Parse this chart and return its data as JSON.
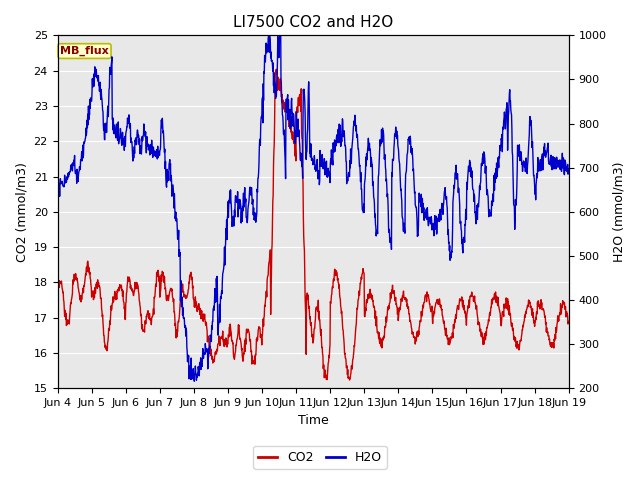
{
  "title": "LI7500 CO2 and H2O",
  "xlabel": "Time",
  "ylabel_left": "CO2 (mmol/m3)",
  "ylabel_right": "H2O (mmol/m3)",
  "ylim_left": [
    15.0,
    25.0
  ],
  "ylim_right": [
    200,
    1000
  ],
  "xtick_labels": [
    "Jun 4",
    "Jun 5",
    "Jun 6",
    "Jun 7",
    "Jun 8",
    "Jun 9",
    "Jun 10",
    "Jun 11",
    "Jun 12",
    "Jun 13",
    "Jun 14",
    "Jun 15",
    "Jun 16",
    "Jun 17",
    "Jun 18",
    "Jun 19"
  ],
  "legend_label_co2": "CO2",
  "legend_label_h2o": "H2O",
  "co2_color": "#cc0000",
  "h2o_color": "#0000cc",
  "background_color": "#e8e8e8",
  "annotation_text": "MB_flux",
  "annotation_bg": "#ffffcc",
  "annotation_border": "#bbbb00",
  "title_fontsize": 11,
  "axis_label_fontsize": 9,
  "tick_fontsize": 8,
  "legend_fontsize": 9,
  "linewidth": 1.0
}
